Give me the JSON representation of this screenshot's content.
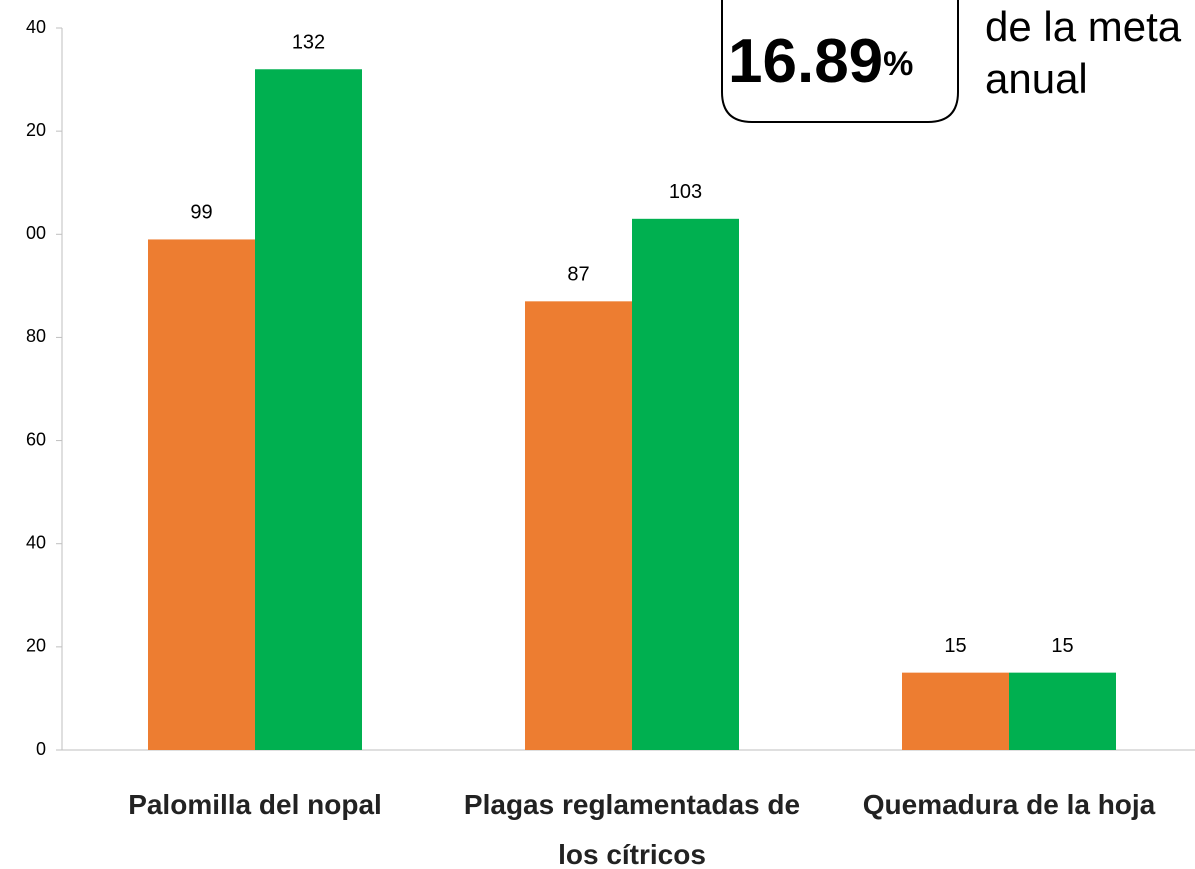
{
  "chart_data": {
    "type": "bar",
    "categories": [
      "Palomilla del nopal",
      "Plagas reglamentadas de los cítricos",
      "Quemadura de la hoja"
    ],
    "series": [
      {
        "color": "#ed7d31",
        "values": [
          99,
          87,
          15
        ]
      },
      {
        "color": "#00b050",
        "values": [
          132,
          103,
          15
        ]
      }
    ],
    "ylim": [
      0,
      140
    ],
    "yticks": [
      0,
      20,
      40,
      60,
      80,
      {
        "value": 100,
        "label": "00"
      },
      {
        "value": 120,
        "label": "20"
      },
      {
        "value": 140,
        "label": "40"
      }
    ],
    "annotation": {
      "value": "16.89",
      "unit": "%",
      "text_lines": [
        "de la meta",
        "anual"
      ]
    }
  }
}
